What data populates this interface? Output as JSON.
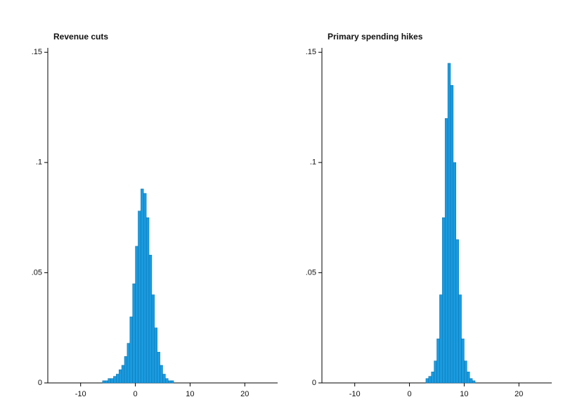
{
  "chart_data": [
    {
      "type": "histogram",
      "title": "Revenue cuts",
      "color": "#1a9be0",
      "bins": [
        -6,
        -5.5,
        -5,
        -4.5,
        -4,
        -3.5,
        -3,
        -2.5,
        -2,
        -1.5,
        -1,
        -0.5,
        0,
        0.5,
        1,
        1.5,
        2,
        2.5,
        3,
        3.5,
        4,
        4.5,
        5,
        5.5,
        6,
        6.5,
        7
      ],
      "values": [
        0.001,
        0.001,
        0.002,
        0.002,
        0.003,
        0.004,
        0.006,
        0.008,
        0.012,
        0.018,
        0.03,
        0.045,
        0.062,
        0.078,
        0.088,
        0.086,
        0.075,
        0.058,
        0.04,
        0.025,
        0.014,
        0.008,
        0.004,
        0.002,
        0.001,
        0.001
      ],
      "xlim": [
        -16,
        26
      ],
      "ylim": [
        0,
        0.152
      ],
      "xticks": [
        -10,
        0,
        10,
        20
      ],
      "yticks": [
        0,
        {
          "value": 0.05,
          "label": ".05"
        },
        {
          "value": 0.1,
          "label": ".1"
        },
        {
          "value": 0.15,
          "label": ".15"
        }
      ]
    },
    {
      "type": "histogram",
      "title": "Primary spending hikes",
      "color": "#1a9be0",
      "bins": [
        3,
        3.5,
        4,
        4.5,
        5,
        5.5,
        6,
        6.5,
        7,
        7.5,
        8,
        8.5,
        9,
        9.5,
        10,
        10.5,
        11,
        11.5,
        12
      ],
      "values": [
        0.002,
        0.003,
        0.005,
        0.01,
        0.02,
        0.04,
        0.075,
        0.12,
        0.145,
        0.135,
        0.1,
        0.065,
        0.04,
        0.02,
        0.01,
        0.005,
        0.002,
        0.001
      ],
      "xlim": [
        -16,
        26
      ],
      "ylim": [
        0,
        0.152
      ],
      "xticks": [
        -10,
        0,
        10,
        20
      ],
      "yticks": [
        0,
        {
          "value": 0.05,
          "label": ".05"
        },
        {
          "value": 0.1,
          "label": ".1"
        },
        {
          "value": 0.15,
          "label": ".15"
        }
      ]
    }
  ]
}
